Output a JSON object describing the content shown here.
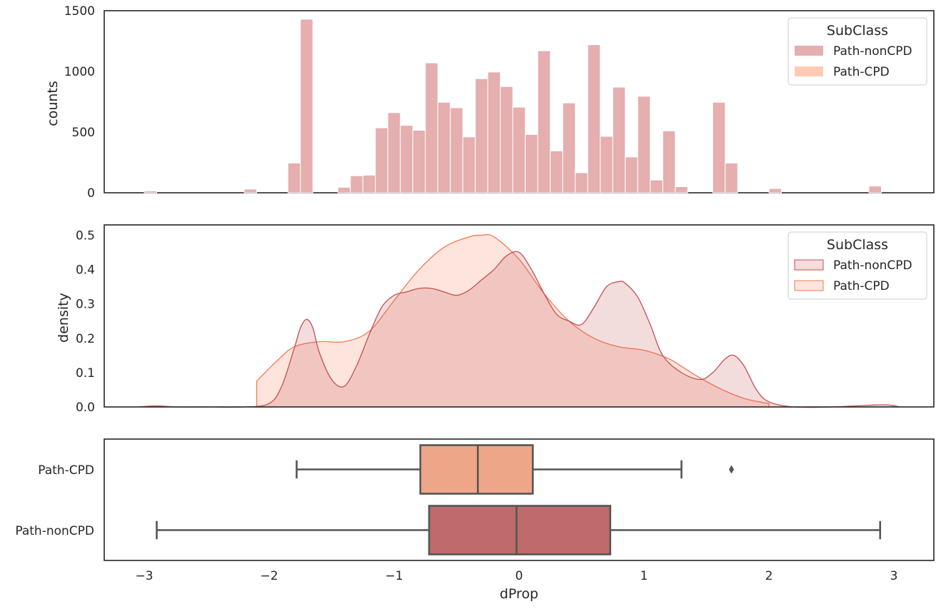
{
  "colors": {
    "nonCPD": "#c44e52",
    "CPD": "#f47a50",
    "hist_nonCPD": "#e5aeaf",
    "hist_CPD": "#ffcbb4",
    "box_CPD": "#eea688",
    "box_nonCPD": "#bf6a6b",
    "box_line": "#555555",
    "frame": "#262626"
  },
  "chart_data": [
    {
      "type": "bar",
      "subtype": "histogram",
      "ylabel": "counts",
      "ylim": [
        0,
        1500
      ],
      "xlim": [
        -3.32,
        3.32
      ],
      "yticks": [
        "0",
        "500",
        "1000",
        "1500"
      ],
      "bin_width": 0.1,
      "legend": {
        "title": "SubClass",
        "placement": "top-right",
        "entries": [
          "Path-nonCPD",
          "Path-CPD"
        ]
      },
      "series": [
        {
          "name": "Path-nonCPD",
          "bins": [
            [
              -2.95,
              15
            ],
            [
              -2.15,
              30
            ],
            [
              -1.8,
              245
            ],
            [
              -1.7,
              1430
            ],
            [
              -1.4,
              45
            ],
            [
              -1.3,
              140
            ],
            [
              -1.2,
              145
            ],
            [
              -1.1,
              535
            ],
            [
              -1.0,
              660
            ],
            [
              -0.9,
              555
            ],
            [
              -0.8,
              515
            ],
            [
              -0.7,
              1070
            ],
            [
              -0.6,
              745
            ],
            [
              -0.5,
              700
            ],
            [
              -0.4,
              460
            ],
            [
              -0.3,
              940
            ],
            [
              -0.2,
              995
            ],
            [
              -0.1,
              875
            ],
            [
              0.0,
              705
            ],
            [
              0.1,
              480
            ],
            [
              0.2,
              1170
            ],
            [
              0.3,
              345
            ],
            [
              0.4,
              740
            ],
            [
              0.5,
              165
            ],
            [
              0.6,
              1220
            ],
            [
              0.7,
              465
            ],
            [
              0.8,
              870
            ],
            [
              0.9,
              295
            ],
            [
              1.0,
              795
            ],
            [
              1.1,
              105
            ],
            [
              1.2,
              510
            ],
            [
              1.3,
              50
            ],
            [
              1.6,
              745
            ],
            [
              1.7,
              245
            ],
            [
              2.05,
              35
            ],
            [
              2.85,
              55
            ]
          ]
        },
        {
          "name": "Path-CPD",
          "bins": []
        }
      ]
    },
    {
      "type": "area",
      "subtype": "kde",
      "ylabel": "density",
      "ylim": [
        0,
        0.53
      ],
      "xlim": [
        -3.32,
        3.32
      ],
      "yticks": [
        "0.0",
        "0.1",
        "0.2",
        "0.3",
        "0.4",
        "0.5"
      ],
      "legend": {
        "title": "SubClass",
        "placement": "top-right",
        "entries": [
          "Path-nonCPD",
          "Path-CPD"
        ]
      },
      "series": [
        {
          "name": "Path-nonCPD",
          "x": [
            -3.05,
            -2.9,
            -2.75,
            -2.5,
            -2.2,
            -2.0,
            -1.9,
            -1.8,
            -1.75,
            -1.7,
            -1.65,
            -1.6,
            -1.5,
            -1.4,
            -1.3,
            -1.2,
            -1.1,
            -1.0,
            -0.9,
            -0.8,
            -0.7,
            -0.6,
            -0.5,
            -0.4,
            -0.3,
            -0.2,
            -0.1,
            0.0,
            0.1,
            0.2,
            0.3,
            0.4,
            0.5,
            0.6,
            0.7,
            0.8,
            0.85,
            0.95,
            1.05,
            1.15,
            1.3,
            1.45,
            1.55,
            1.65,
            1.72,
            1.8,
            1.9,
            2.0,
            2.2,
            2.5,
            2.8,
            2.95,
            3.05
          ],
          "y": [
            0.0,
            0.003,
            0.0,
            0.0,
            0.0,
            0.01,
            0.06,
            0.17,
            0.23,
            0.255,
            0.23,
            0.16,
            0.08,
            0.06,
            0.12,
            0.21,
            0.29,
            0.325,
            0.335,
            0.345,
            0.345,
            0.335,
            0.325,
            0.34,
            0.37,
            0.4,
            0.44,
            0.45,
            0.4,
            0.33,
            0.27,
            0.25,
            0.24,
            0.29,
            0.35,
            0.365,
            0.36,
            0.32,
            0.24,
            0.15,
            0.1,
            0.08,
            0.1,
            0.14,
            0.15,
            0.12,
            0.05,
            0.015,
            0.0,
            0.0,
            0.005,
            0.006,
            0.0
          ]
        },
        {
          "name": "Path-CPD",
          "x": [
            -2.1,
            -1.95,
            -1.8,
            -1.6,
            -1.4,
            -1.2,
            -1.0,
            -0.8,
            -0.6,
            -0.4,
            -0.3,
            -0.2,
            0.0,
            0.2,
            0.4,
            0.6,
            0.8,
            1.0,
            1.2,
            1.4,
            1.6,
            1.8,
            2.0
          ],
          "y": [
            0.075,
            0.13,
            0.175,
            0.19,
            0.19,
            0.22,
            0.31,
            0.4,
            0.465,
            0.495,
            0.5,
            0.495,
            0.43,
            0.33,
            0.25,
            0.2,
            0.175,
            0.165,
            0.14,
            0.095,
            0.055,
            0.025,
            0.01
          ]
        }
      ]
    },
    {
      "type": "box",
      "xlabel": "dProp",
      "xlim": [
        -3.32,
        3.32
      ],
      "xticks": [
        "−3",
        "−2",
        "−1",
        "0",
        "1",
        "2",
        "3"
      ],
      "categories": [
        "Path-CPD",
        "Path-nonCPD"
      ],
      "series": [
        {
          "name": "Path-CPD",
          "whisker_low": -1.78,
          "q1": -0.79,
          "median": -0.33,
          "q3": 0.11,
          "whisker_high": 1.3,
          "outliers": [
            1.7
          ]
        },
        {
          "name": "Path-nonCPD",
          "whisker_low": -2.9,
          "q1": -0.72,
          "median": -0.02,
          "q3": 0.73,
          "whisker_high": 2.89,
          "outliers": []
        }
      ]
    }
  ]
}
